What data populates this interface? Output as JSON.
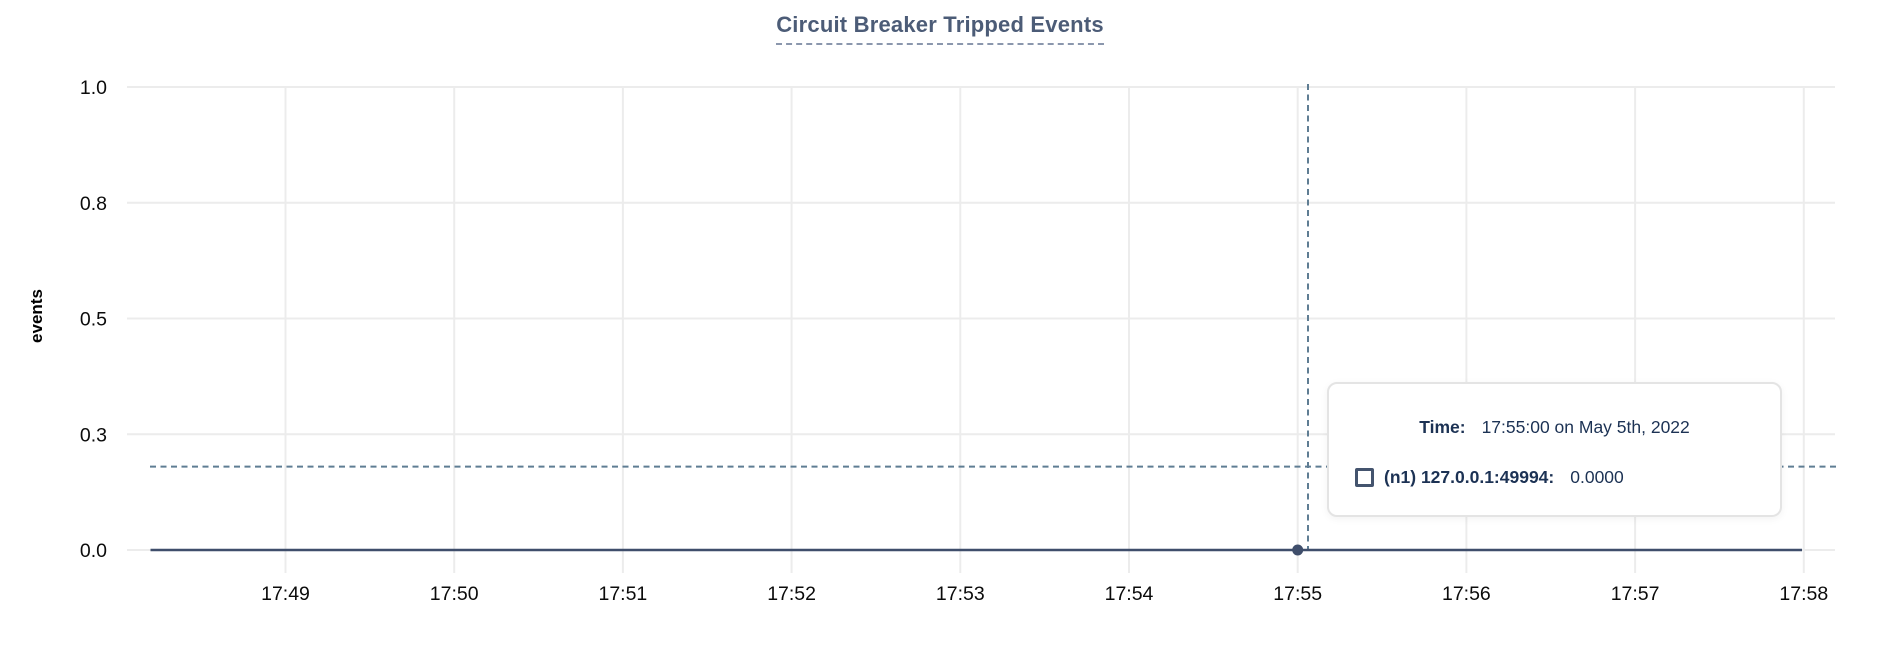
{
  "chart_data": {
    "type": "line",
    "title": "Circuit Breaker Tripped Events",
    "ylabel": "events",
    "xlabel": "",
    "x": [
      "17:49",
      "17:50",
      "17:51",
      "17:52",
      "17:53",
      "17:54",
      "17:55",
      "17:56",
      "17:57",
      "17:58"
    ],
    "y_ticks": [
      {
        "label": "0.0",
        "value": 0
      },
      {
        "label": "0.3",
        "value": 0.25
      },
      {
        "label": "0.5",
        "value": 0.5
      },
      {
        "label": "0.8",
        "value": 0.75
      },
      {
        "label": "1.0",
        "value": 1.0
      }
    ],
    "ylim": [
      0,
      1
    ],
    "grid": true,
    "legend_position": "tooltip",
    "series": [
      {
        "name": "(n1) 127.0.0.1:49994",
        "values": [
          0,
          0,
          0,
          0,
          0,
          0,
          0,
          0,
          0,
          0
        ]
      }
    ],
    "highlighted_point": {
      "x": "17:55",
      "value": 0
    },
    "cursor": {
      "x": "17:55",
      "y_value": 0.18
    }
  },
  "tooltip": {
    "time_label": "Time:",
    "time_value": "17:55:00 on May 5th, 2022",
    "series_name": "(n1) 127.0.0.1:49994:",
    "series_value": "0.0000",
    "marker_color": "#44546e"
  },
  "colors": {
    "title": "#4c5c77",
    "title_underline": "#8b97ad",
    "grid": "#ececec",
    "axis_text": "#0b0b0b",
    "series_line": "#3f4e6b",
    "crosshair": "#5f7d93",
    "tooltip_text": "#1c3254",
    "tooltip_border": "#e4e4e4",
    "background": "#ffffff"
  }
}
